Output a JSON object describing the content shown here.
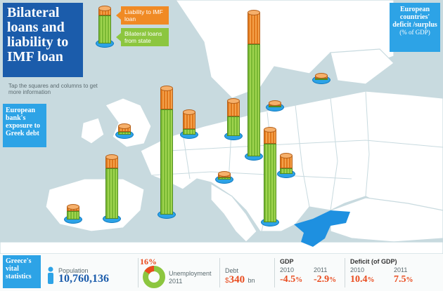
{
  "title": "Bilateral loans and liability to IMF loan",
  "tap_hint": "Tap the squares and columns to get more information",
  "legend": {
    "imf_label": "Liability to IMF loan",
    "bilateral_label": "Bilateral loans from state"
  },
  "bank_exposure_label": "European bank's exposure to Greek debt",
  "deficit_label": "European countries' deficit /surplus",
  "deficit_unit": "(% of GDP)",
  "colors": {
    "water": "#c8dadf",
    "land": "#ffffff",
    "greece": "#1e90e0",
    "title_bg": "#1b5cab",
    "panel_bg": "#2da3e6",
    "imf_orange": "#f08a24",
    "bilateral_green": "#8cc63f",
    "negative_red": "#e94b1e"
  },
  "vitals": {
    "heading": "Greece's vital statistics",
    "population_label": "Population",
    "population_value": "10,760,136",
    "unemployment_value": "16",
    "unemployment_pct_sign": "%",
    "unemployment_fraction": 0.16,
    "unemployment_label": "Unemployment",
    "unemployment_year": "2011",
    "debt_label": "Debt",
    "debt_currency": "$",
    "debt_value": "340",
    "debt_unit": "bn",
    "gdp_label": "GDP",
    "gdp_year1": "2010",
    "gdp_year2": "2011",
    "gdp_2010": "-4.5",
    "gdp_2011": "-2.9",
    "pct": "%",
    "deficit_label": "Deficit (of GDP)",
    "deficit_year1": "2010",
    "deficit_year2": "2011",
    "deficit_2010": "10.4",
    "deficit_2011": "7.5"
  }
}
